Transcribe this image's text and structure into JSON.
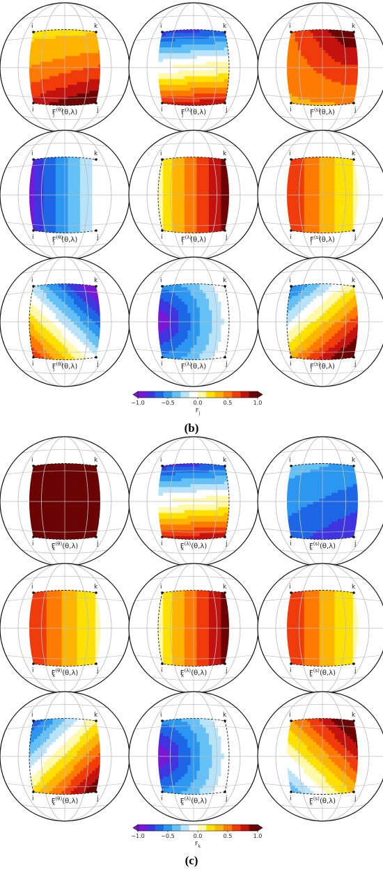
{
  "figure": {
    "panels": [
      {
        "label": "(b)",
        "colorbar": {
          "label": "F",
          "label_sub": "j",
          "ticks": [
            "−1.0",
            "−0.5",
            "0.0",
            "0.5",
            "1.0"
          ]
        },
        "rows": [
          [
            {
              "name": "F",
              "sub": "j",
              "sup": "(θ)",
              "arg": "(θ,λ)",
              "pattern": "lat-warm-b",
              "dashed": "top"
            },
            {
              "name": "F",
              "sub": "j",
              "sup": "(λ)",
              "arg": "(θ,λ)",
              "pattern": "lat-split",
              "dashed": "right"
            },
            {
              "name": "F",
              "sub": "j",
              "sup": "(s)",
              "arg": "(θ,λ)",
              "pattern": "lat-warm-c",
              "dashed": "bottom"
            }
          ],
          [
            {
              "name": "F",
              "sub": "j",
              "sup": "(θ)",
              "arg": "(θ,λ)",
              "pattern": "lon-cool",
              "dashed": "top"
            },
            {
              "name": "F",
              "sub": "j",
              "sup": "(λ)",
              "arg": "(θ,λ)",
              "pattern": "lon-hot",
              "dashed": "left"
            },
            {
              "name": "F",
              "sub": "j",
              "sup": "(s)",
              "arg": "(θ,λ)",
              "pattern": "lon-warm-fade",
              "dashed": "top"
            }
          ],
          [
            {
              "name": "F",
              "sub": "j",
              "sup": "(θ)",
              "arg": "(θ,λ)",
              "pattern": "diag-cool-yellow",
              "dashed": "left"
            },
            {
              "name": "F",
              "sub": "j",
              "sup": "(λ)",
              "arg": "(θ,λ)",
              "pattern": "radial-purple",
              "dashed": "right"
            },
            {
              "name": "F",
              "sub": "j",
              "sup": "(s)",
              "arg": "(θ,λ)",
              "pattern": "diag-warm",
              "dashed": "left"
            }
          ]
        ]
      },
      {
        "label": "(c)",
        "colorbar": {
          "label": "F",
          "label_sub": "k",
          "ticks": [
            "−1.0",
            "−0.5",
            "0.0",
            "0.5",
            "1.0"
          ]
        },
        "rows": [
          [
            {
              "name": "F",
              "sub": "k",
              "sup": "(θ)",
              "arg": "(θ,λ)",
              "pattern": "lat-warm-a",
              "dashed": "top"
            },
            {
              "name": "F",
              "sub": "k",
              "sup": "(λ)",
              "arg": "(θ,λ)",
              "pattern": "lat-split",
              "dashed": "right"
            },
            {
              "name": "F",
              "sub": "k",
              "sup": "(s)",
              "arg": "(θ,λ)",
              "pattern": "lat-cool",
              "dashed": "top"
            }
          ],
          [
            {
              "name": "F",
              "sub": "k",
              "sup": "(θ)",
              "arg": "(θ,λ)",
              "pattern": "lon-warm-fade",
              "dashed": "top"
            },
            {
              "name": "F",
              "sub": "k",
              "sup": "(λ)",
              "arg": "(θ,λ)",
              "pattern": "lon-hot",
              "dashed": "left"
            },
            {
              "name": "F",
              "sub": "k",
              "sup": "(s)",
              "arg": "(θ,λ)",
              "pattern": "lon-warm-fade",
              "dashed": "top"
            }
          ],
          [
            {
              "name": "F",
              "sub": "k",
              "sup": "(θ)",
              "arg": "(θ,λ)",
              "pattern": "diag-warm-up",
              "dashed": "left"
            },
            {
              "name": "F",
              "sub": "k",
              "sup": "(λ)",
              "arg": "(θ,λ)",
              "pattern": "radial-purple",
              "dashed": "right"
            },
            {
              "name": "F",
              "sub": "k",
              "sup": "(s)",
              "arg": "(θ,λ)",
              "pattern": "diag-red-top",
              "dashed": "bottom"
            }
          ]
        ]
      }
    ],
    "corner_labels": {
      "tl": "i",
      "tr": "k",
      "bl": "i",
      "br": "j"
    },
    "colors": {
      "scale": [
        "#7a17d6",
        "#3f34e0",
        "#1d66e6",
        "#2b97f0",
        "#65c1f5",
        "#b8e3fa",
        "#ffffff",
        "#fff9a8",
        "#ffe100",
        "#ffb400",
        "#ff7a00",
        "#f03b0a",
        "#c4120f",
        "#6b0505"
      ],
      "grid": "#bdbdbd",
      "outline": "#111111"
    }
  }
}
